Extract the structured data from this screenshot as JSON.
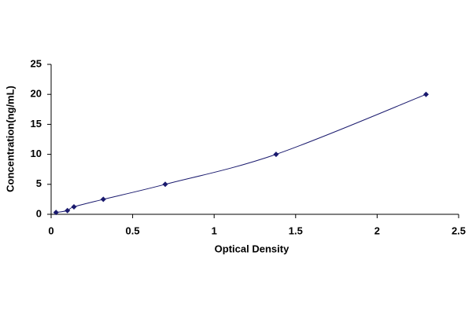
{
  "chart_data": {
    "type": "line",
    "x_label": "Optical Density",
    "y_label": "Concentration(ng/mL)",
    "x": [
      0.03,
      0.1,
      0.14,
      0.32,
      0.7,
      1.38,
      2.3
    ],
    "values": [
      0.31,
      0.625,
      1.25,
      2.5,
      5,
      10,
      20
    ],
    "color": "#1a1a6e",
    "markers": true,
    "smooth": true,
    "xlim": [
      0,
      2.5
    ],
    "xticks": [
      0,
      0.5,
      1,
      1.5,
      2,
      2.5
    ],
    "ylim": [
      0,
      25
    ],
    "yticks": [
      0,
      5,
      10,
      15,
      20,
      25
    ],
    "grid": false
  }
}
